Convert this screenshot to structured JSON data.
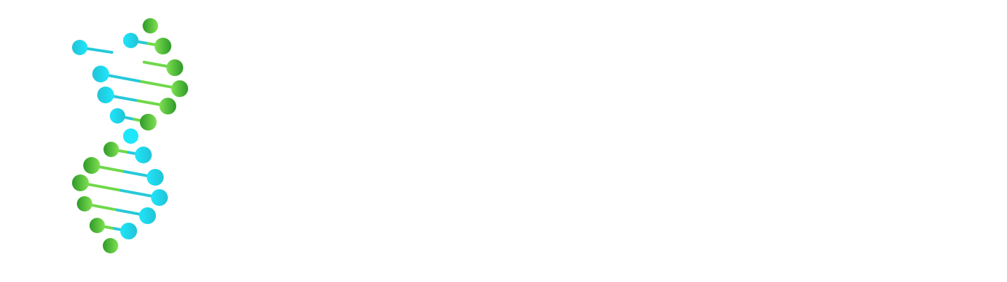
{
  "logo": {
    "icon_name": "dna-helix-icon",
    "colors": {
      "cyan_light": "#1ee6fb",
      "cyan": "#26c9d9",
      "green_light": "#7ee051",
      "green": "#5fcf3f",
      "green_dark": "#2e9a28",
      "background": "#ffffff"
    }
  }
}
